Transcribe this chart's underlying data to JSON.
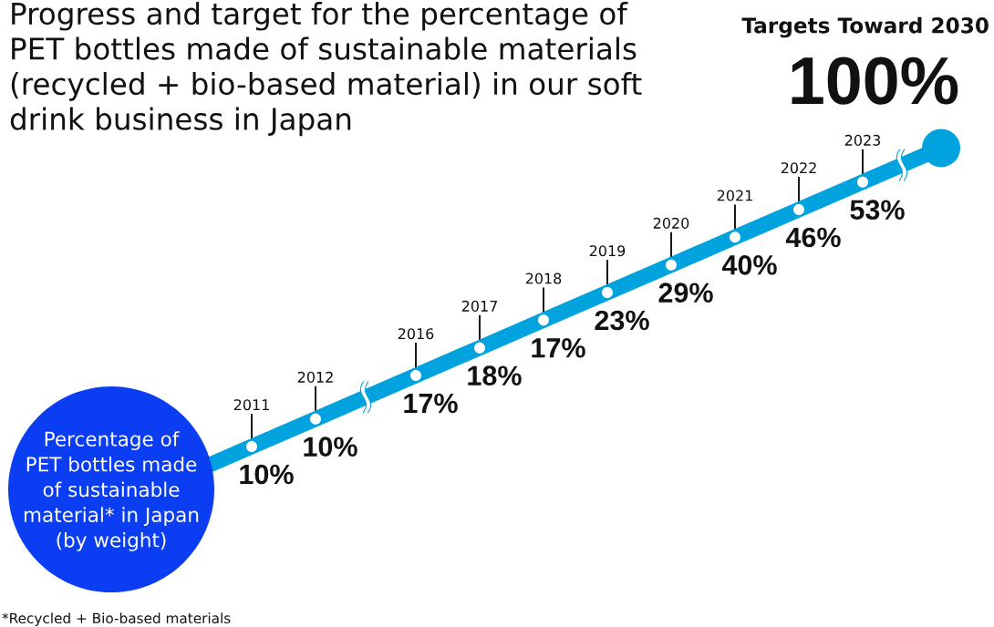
{
  "chart_data": {
    "type": "other",
    "title": "Progress and target for the percentage of PET bottles made of sustainable materials (recycled + bio-based material) in our soft drink business in Japan",
    "ylabel": "Percentage of PET bottles made of sustainable material* in Japan (by weight)",
    "categories": [
      "2011",
      "2012",
      "2016",
      "2017",
      "2018",
      "2019",
      "2020",
      "2021",
      "2022",
      "2023"
    ],
    "values": [
      10,
      10,
      17,
      18,
      17,
      23,
      29,
      40,
      46,
      53
    ],
    "value_labels": [
      "10%",
      "10%",
      "17%",
      "18%",
      "17%",
      "23%",
      "29%",
      "40%",
      "46%",
      "53%"
    ],
    "color": "#00a3de",
    "annotations": [
      "Targets Toward 2030",
      "100%",
      "*Recycled + Bio-based materials"
    ]
  }
}
